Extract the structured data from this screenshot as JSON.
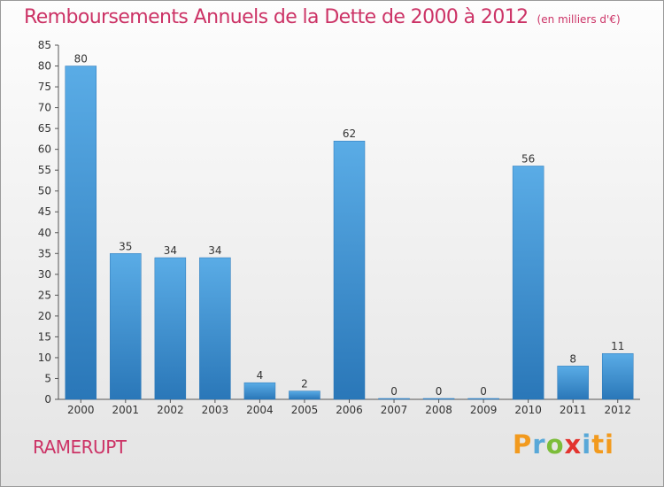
{
  "title": "Remboursements Annuels de la Dette de 2000 à 2012",
  "unit_note": "(en milliers d'€)",
  "commune": "RAMERUPT",
  "logo": {
    "text": "Proxiti",
    "letters": [
      "P",
      "r",
      "o",
      "x",
      "i",
      "ti"
    ]
  },
  "colors": {
    "title": "#cc3366",
    "bar_light": "#5aace6",
    "bar_dark": "#2a77b8"
  },
  "chart_data": {
    "type": "bar",
    "title": "Remboursements Annuels de la Dette de 2000 à 2012",
    "subtitle": "(en milliers d'€)",
    "categories": [
      "2000",
      "2001",
      "2002",
      "2003",
      "2004",
      "2005",
      "2006",
      "2007",
      "2008",
      "2009",
      "2010",
      "2011",
      "2012"
    ],
    "values": [
      80,
      35,
      34,
      34,
      4,
      2,
      62,
      0,
      0,
      0,
      56,
      8,
      11
    ],
    "xlabel": "",
    "ylabel": "",
    "ylim": [
      0,
      85
    ],
    "yticks": [
      0,
      5,
      10,
      15,
      20,
      25,
      30,
      35,
      40,
      45,
      50,
      55,
      60,
      65,
      70,
      75,
      80,
      85
    ],
    "grid": false,
    "legend": "none"
  }
}
